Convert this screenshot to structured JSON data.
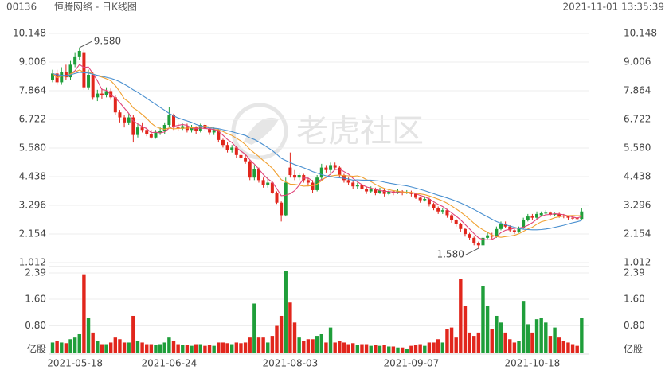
{
  "chart_data": {
    "type": "candlestick",
    "code": "00136",
    "title": "恒腾网络 - 日K线图",
    "timestamp": "2021-11-01 13:35:39",
    "watermark": "老虎社区",
    "categories": [
      null,
      null,
      null,
      null,
      null,
      "2021-05-18",
      null,
      null,
      null,
      null,
      null,
      null,
      null,
      null,
      null,
      null,
      null,
      null,
      null,
      null,
      null,
      null,
      null,
      null,
      null,
      null,
      "2021-06-24",
      null,
      null,
      null,
      null,
      null,
      null,
      null,
      null,
      null,
      null,
      null,
      null,
      null,
      null,
      null,
      null,
      null,
      null,
      null,
      null,
      null,
      null,
      null,
      null,
      null,
      null,
      "2021-08-03",
      null,
      null,
      null,
      null,
      null,
      null,
      null,
      null,
      null,
      null,
      null,
      null,
      null,
      null,
      null,
      null,
      null,
      null,
      null,
      null,
      null,
      null,
      null,
      null,
      null,
      null,
      "2021-09-07",
      null,
      null,
      null,
      null,
      null,
      null,
      null,
      null,
      null,
      null,
      null,
      null,
      null,
      null,
      null,
      null,
      null,
      null,
      null,
      null,
      null,
      null,
      null,
      null,
      null,
      null,
      "2021-10-18",
      null,
      null,
      null,
      null,
      null,
      null,
      null,
      null,
      null,
      null,
      null
    ],
    "open": [
      8.3,
      8.55,
      8.2,
      8.6,
      8.4,
      8.9,
      9.2,
      9.4,
      8.0,
      8.5,
      7.6,
      7.75,
      7.7,
      7.85,
      7.6,
      7.0,
      6.8,
      6.6,
      6.8,
      6.1,
      6.4,
      6.3,
      6.15,
      6.0,
      6.2,
      6.25,
      6.5,
      6.9,
      6.4,
      6.35,
      6.45,
      6.3,
      6.4,
      6.25,
      6.5,
      6.35,
      6.2,
      6.3,
      5.9,
      5.7,
      5.5,
      5.6,
      5.3,
      5.2,
      5.05,
      4.4,
      4.75,
      4.3,
      4.1,
      4.2,
      3.8,
      3.4,
      2.9,
      4.8,
      4.5,
      4.4,
      4.5,
      4.3,
      4.2,
      3.9,
      4.4,
      4.8,
      4.7,
      4.9,
      4.8,
      4.5,
      4.3,
      4.2,
      4.05,
      4.1,
      3.95,
      3.85,
      3.95,
      3.8,
      3.9,
      3.75,
      3.85,
      3.8,
      3.85,
      3.8,
      3.82,
      3.75,
      3.6,
      3.5,
      3.55,
      3.35,
      3.2,
      3.05,
      3.1,
      2.9,
      2.7,
      2.55,
      2.35,
      2.15,
      2.0,
      1.8,
      1.7,
      2.0,
      2.1,
      2.05,
      2.35,
      2.55,
      2.45,
      2.3,
      2.25,
      2.4,
      2.7,
      2.85,
      2.8,
      2.9,
      2.98,
      3.0,
      2.92,
      2.95,
      2.88,
      2.85,
      2.8,
      2.78,
      2.75
    ],
    "high": [
      8.7,
      8.7,
      8.8,
      8.9,
      9.05,
      9.4,
      9.58,
      9.5,
      8.7,
      8.6,
      7.9,
      7.95,
      8.0,
      7.95,
      7.7,
      7.1,
      6.9,
      6.95,
      6.9,
      6.55,
      6.6,
      6.4,
      6.3,
      6.3,
      6.4,
      6.6,
      7.2,
      6.95,
      6.55,
      6.55,
      6.55,
      6.5,
      6.45,
      6.55,
      6.55,
      6.4,
      6.4,
      6.35,
      5.95,
      5.8,
      5.7,
      5.65,
      5.4,
      5.3,
      5.1,
      4.9,
      4.8,
      4.4,
      4.4,
      4.25,
      3.85,
      3.45,
      4.4,
      5.4,
      4.7,
      4.6,
      4.55,
      4.4,
      4.3,
      4.5,
      4.95,
      4.9,
      5.0,
      5.0,
      4.85,
      4.55,
      4.4,
      4.3,
      4.2,
      4.15,
      4.05,
      4.05,
      4.0,
      4.0,
      3.95,
      3.95,
      3.9,
      3.95,
      3.9,
      3.9,
      3.88,
      3.8,
      3.65,
      3.65,
      3.6,
      3.4,
      3.25,
      3.2,
      3.15,
      2.95,
      2.75,
      2.6,
      2.4,
      2.2,
      2.05,
      1.85,
      2.1,
      2.2,
      2.2,
      2.45,
      2.65,
      2.65,
      2.5,
      2.35,
      2.45,
      2.8,
      2.95,
      2.95,
      3.05,
      3.05,
      3.1,
      3.05,
      3.0,
      3.0,
      2.95,
      2.9,
      2.85,
      2.82,
      3.2
    ],
    "low": [
      8.2,
      8.1,
      8.1,
      8.3,
      8.3,
      8.8,
      9.1,
      7.9,
      7.9,
      7.5,
      7.45,
      7.55,
      7.6,
      7.5,
      6.9,
      6.6,
      6.4,
      6.5,
      5.8,
      6.0,
      6.2,
      6.05,
      5.95,
      5.95,
      6.1,
      6.15,
      6.4,
      6.3,
      6.25,
      6.3,
      6.2,
      6.2,
      6.15,
      6.2,
      6.25,
      6.1,
      6.1,
      5.8,
      5.6,
      5.4,
      5.4,
      5.2,
      5.1,
      4.95,
      4.3,
      4.3,
      4.2,
      4.0,
      4.0,
      3.75,
      3.35,
      2.65,
      2.85,
      4.4,
      4.3,
      4.3,
      4.2,
      4.05,
      3.8,
      3.85,
      4.3,
      4.6,
      4.6,
      4.7,
      4.4,
      4.2,
      4.1,
      3.95,
      3.95,
      3.85,
      3.75,
      3.8,
      3.7,
      3.75,
      3.65,
      3.7,
      3.7,
      3.75,
      3.7,
      3.75,
      3.65,
      3.55,
      3.4,
      3.45,
      3.25,
      3.1,
      2.95,
      2.95,
      2.8,
      2.6,
      2.45,
      2.25,
      2.05,
      1.9,
      1.7,
      1.58,
      1.65,
      1.95,
      1.95,
      2.0,
      2.3,
      2.4,
      2.25,
      2.15,
      2.2,
      2.35,
      2.65,
      2.7,
      2.75,
      2.85,
      2.9,
      2.85,
      2.85,
      2.8,
      2.78,
      2.72,
      2.7,
      2.7,
      2.72
    ],
    "close": [
      8.55,
      8.2,
      8.6,
      8.4,
      8.9,
      9.2,
      9.45,
      8.0,
      8.5,
      7.6,
      7.75,
      7.7,
      7.85,
      7.6,
      7.0,
      6.8,
      6.6,
      6.8,
      6.1,
      6.4,
      6.3,
      6.15,
      6.0,
      6.2,
      6.25,
      6.5,
      6.9,
      6.4,
      6.35,
      6.45,
      6.3,
      6.4,
      6.25,
      6.5,
      6.35,
      6.2,
      6.3,
      5.9,
      5.7,
      5.5,
      5.6,
      5.3,
      5.2,
      5.05,
      4.4,
      4.75,
      4.3,
      4.1,
      4.2,
      3.8,
      3.4,
      2.9,
      4.2,
      4.5,
      4.4,
      4.5,
      4.3,
      4.2,
      3.9,
      4.4,
      4.8,
      4.7,
      4.9,
      4.8,
      4.5,
      4.3,
      4.2,
      4.05,
      4.1,
      3.95,
      3.85,
      3.95,
      3.8,
      3.9,
      3.75,
      3.85,
      3.8,
      3.85,
      3.8,
      3.82,
      3.75,
      3.6,
      3.5,
      3.55,
      3.35,
      3.2,
      3.05,
      3.1,
      2.9,
      2.7,
      2.55,
      2.35,
      2.15,
      2.0,
      1.8,
      1.7,
      2.0,
      2.1,
      2.05,
      2.35,
      2.55,
      2.45,
      2.3,
      2.25,
      2.4,
      2.7,
      2.85,
      2.8,
      2.95,
      2.98,
      3.0,
      2.92,
      2.95,
      2.88,
      2.85,
      2.8,
      2.78,
      2.75,
      3.05
    ],
    "ylim": [
      1.012,
      10.148
    ],
    "yticks": [
      10.148,
      9.006,
      7.864,
      6.722,
      {
        "value": 5.58,
        "label": "5.580"
      },
      4.438,
      3.296,
      2.154,
      1.012
    ],
    "up_color": "#1f9e3a",
    "down_color": "#e1261c",
    "max_label": "9.580",
    "min_label": "1.580",
    "ma_lines": [
      {
        "color": "#e0447a",
        "values": [
          8.55,
          8.38,
          8.45,
          8.44,
          8.53,
          8.66,
          8.91,
          8.79,
          8.81,
          8.55,
          8.26,
          7.91,
          7.88,
          7.7,
          7.58,
          7.39,
          7.17,
          6.96,
          6.66,
          6.54,
          6.44,
          6.35,
          6.19,
          6.21,
          6.18,
          6.22,
          6.37,
          6.45,
          6.48,
          6.52,
          6.48,
          6.38,
          6.35,
          6.38,
          6.36,
          6.34,
          6.32,
          6.25,
          6.09,
          5.92,
          5.8,
          5.6,
          5.46,
          5.33,
          5.11,
          4.94,
          4.74,
          4.52,
          4.35,
          4.23,
          3.96,
          3.68,
          3.7,
          3.76,
          3.88,
          4.1,
          4.38,
          4.38,
          4.26,
          4.26,
          4.32,
          4.4,
          4.54,
          4.72,
          4.74,
          4.64,
          4.54,
          4.37,
          4.23,
          4.12,
          4.03,
          3.98,
          3.93,
          3.89,
          3.85,
          3.85,
          3.82,
          3.81,
          3.81,
          3.82,
          3.8,
          3.76,
          3.69,
          3.64,
          3.55,
          3.44,
          3.33,
          3.25,
          3.12,
          2.99,
          2.86,
          2.72,
          2.53,
          2.35,
          2.17,
          2.0,
          1.93,
          1.92,
          1.93,
          2.04,
          2.21,
          2.3,
          2.34,
          2.38,
          2.39,
          2.42,
          2.5,
          2.6,
          2.74,
          2.86,
          2.92,
          2.93,
          2.96,
          2.95,
          2.92,
          2.88,
          2.83,
          2.79,
          2.85
        ]
      },
      {
        "color": "#f0a030",
        "values": [
          8.55,
          8.38,
          8.45,
          8.44,
          8.53,
          8.61,
          8.69,
          8.6,
          8.62,
          8.54,
          8.46,
          8.41,
          8.34,
          8.26,
          8.07,
          7.83,
          7.54,
          7.42,
          7.18,
          7.06,
          6.91,
          6.76,
          6.57,
          6.43,
          6.36,
          6.33,
          6.38,
          6.34,
          6.36,
          6.37,
          6.37,
          6.39,
          6.41,
          6.44,
          6.45,
          6.42,
          6.36,
          6.31,
          6.24,
          6.15,
          6.08,
          5.97,
          5.86,
          5.72,
          5.53,
          5.38,
          5.24,
          5.08,
          4.94,
          4.77,
          4.55,
          4.32,
          4.23,
          4.14,
          4.13,
          4.1,
          4.06,
          4.07,
          4.08,
          4.14,
          4.28,
          4.42,
          4.46,
          4.49,
          4.5,
          4.48,
          4.47,
          4.45,
          4.47,
          4.42,
          4.32,
          4.24,
          4.13,
          4.04,
          3.97,
          3.92,
          3.88,
          3.86,
          3.83,
          3.82,
          3.81,
          3.78,
          3.75,
          3.72,
          3.67,
          3.61,
          3.54,
          3.47,
          3.38,
          3.27,
          3.15,
          3.03,
          2.89,
          2.74,
          2.58,
          2.43,
          2.32,
          2.22,
          2.11,
          2.05,
          2.02,
          2.05,
          2.07,
          2.1,
          2.16,
          2.26,
          2.35,
          2.42,
          2.54,
          2.64,
          2.69,
          2.73,
          2.8,
          2.84,
          2.87,
          2.88,
          2.89,
          2.88,
          2.88
        ]
      },
      {
        "color": "#4a90d0",
        "values": [
          8.55,
          8.5,
          8.48,
          8.47,
          8.5,
          8.55,
          8.6,
          8.58,
          8.57,
          8.52,
          8.48,
          8.44,
          8.4,
          8.36,
          8.3,
          8.22,
          8.12,
          8.02,
          7.9,
          7.8,
          7.68,
          7.56,
          7.44,
          7.32,
          7.2,
          7.08,
          6.96,
          6.86,
          6.78,
          6.72,
          6.66,
          6.6,
          6.52,
          6.46,
          6.42,
          6.38,
          6.37,
          6.35,
          6.31,
          6.27,
          6.23,
          6.18,
          6.13,
          6.08,
          5.99,
          5.92,
          5.82,
          5.71,
          5.6,
          5.48,
          5.33,
          5.17,
          5.08,
          5.0,
          4.92,
          4.86,
          4.79,
          4.72,
          4.64,
          4.58,
          4.52,
          4.47,
          4.44,
          4.41,
          4.39,
          4.37,
          4.34,
          4.3,
          4.31,
          4.3,
          4.3,
          4.3,
          4.28,
          4.26,
          4.22,
          4.18,
          4.15,
          4.12,
          4.1,
          4.07,
          4.03,
          3.98,
          3.93,
          3.88,
          3.82,
          3.76,
          3.7,
          3.65,
          3.59,
          3.53,
          3.46,
          3.39,
          3.31,
          3.22,
          3.13,
          3.03,
          2.93,
          2.84,
          2.74,
          2.65,
          2.58,
          2.52,
          2.47,
          2.42,
          2.37,
          2.34,
          2.33,
          2.32,
          2.32,
          2.33,
          2.35,
          2.38,
          2.42,
          2.46,
          2.5,
          2.55,
          2.6,
          2.64,
          2.69
        ]
      }
    ],
    "volume": {
      "unit": "亿股",
      "ylim": [
        0,
        2.39
      ],
      "yticks": [
        {
          "value": 0.8,
          "label": "0.80"
        },
        {
          "value": 1.6,
          "label": "1.60"
        },
        2.39
      ],
      "values": [
        0.3,
        0.35,
        0.3,
        0.28,
        0.4,
        0.45,
        0.55,
        2.35,
        1.05,
        0.6,
        0.35,
        0.25,
        0.25,
        0.3,
        0.45,
        0.4,
        0.3,
        0.3,
        1.1,
        0.35,
        0.3,
        0.25,
        0.25,
        0.22,
        0.25,
        0.3,
        0.45,
        0.35,
        0.25,
        0.22,
        0.22,
        0.2,
        0.25,
        0.25,
        0.2,
        0.22,
        0.2,
        0.3,
        0.3,
        0.28,
        0.25,
        0.3,
        0.28,
        0.3,
        0.45,
        1.47,
        0.45,
        0.45,
        0.3,
        0.5,
        0.8,
        1.1,
        2.45,
        1.5,
        0.9,
        0.45,
        0.35,
        0.4,
        0.4,
        0.5,
        0.55,
        0.3,
        0.75,
        0.3,
        0.35,
        0.3,
        0.25,
        0.28,
        0.22,
        0.25,
        0.25,
        0.2,
        0.22,
        0.2,
        0.22,
        0.18,
        0.18,
        0.15,
        0.15,
        0.12,
        0.2,
        0.22,
        0.25,
        0.2,
        0.3,
        0.3,
        0.4,
        0.3,
        0.7,
        0.75,
        0.45,
        2.2,
        1.4,
        0.6,
        0.5,
        0.6,
        2.0,
        1.4,
        0.7,
        1.1,
        0.9,
        0.6,
        0.4,
        0.3,
        0.35,
        1.55,
        0.85,
        0.6,
        1.0,
        1.05,
        0.9,
        0.5,
        0.75,
        0.45,
        0.35,
        0.3,
        0.25,
        0.2,
        1.05
      ]
    }
  }
}
